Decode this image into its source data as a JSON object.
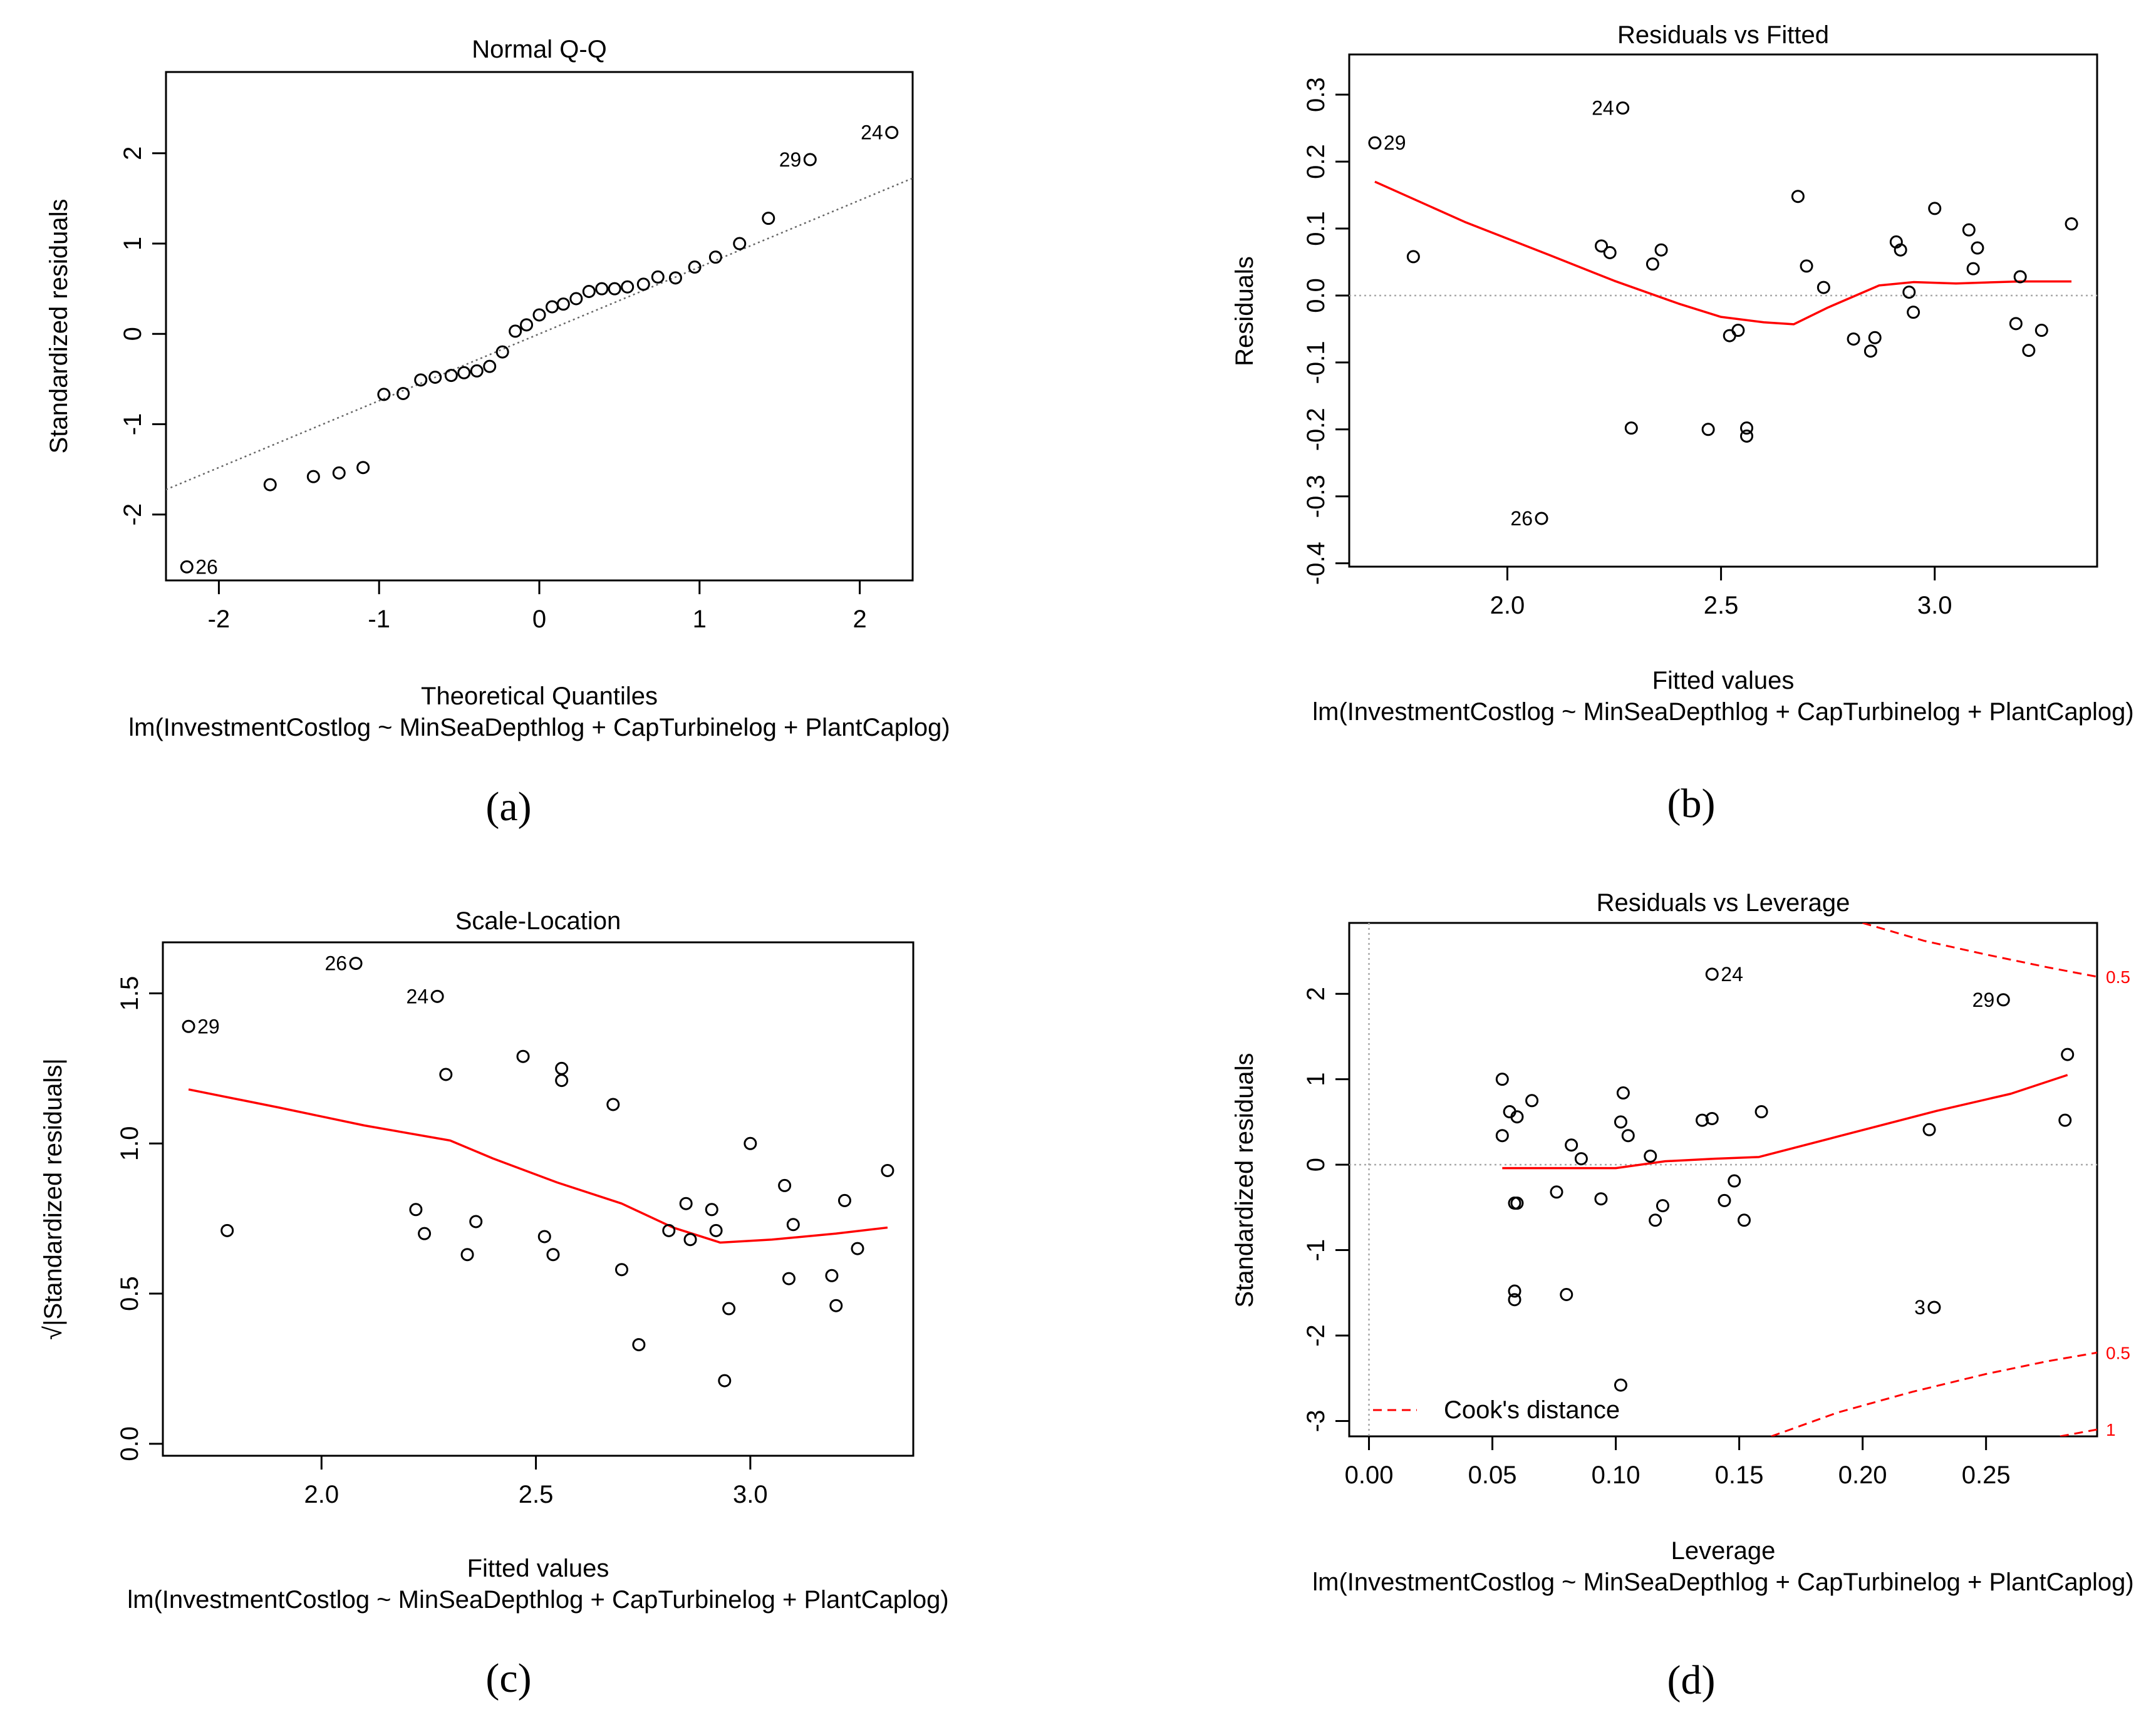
{
  "model_formula": "lm(InvestmentCostlog ~ MinSeaDepthlog + CapTurbinelog + PlantCaplog)",
  "chart_data": [
    {
      "id": "a",
      "panel_label": "(a)",
      "type": "scatter",
      "title": "Normal Q-Q",
      "xlabel": "Theoretical Quantiles",
      "ylabel": "Standardized residuals",
      "subtitle": "lm(InvestmentCostlog ~ MinSeaDepthlog + CapTurbinelog + PlantCaplog)",
      "xlim": [
        -2.33,
        2.33
      ],
      "ylim": [
        -2.73,
        2.9
      ],
      "xticks": [
        -2,
        -1,
        0,
        1,
        2
      ],
      "yticks": [
        -2,
        -1,
        0,
        1,
        2
      ],
      "xtick_labels": [
        "-2",
        "-1",
        "0",
        "1",
        "2"
      ],
      "ytick_labels": [
        "-2",
        "-1",
        "0",
        "1",
        "2"
      ],
      "points": [
        [
          -2.2,
          -2.58
        ],
        [
          -1.68,
          -1.67
        ],
        [
          -1.41,
          -1.58
        ],
        [
          -1.25,
          -1.54
        ],
        [
          -1.1,
          -1.48
        ],
        [
          -0.97,
          -0.67
        ],
        [
          -0.85,
          -0.66
        ],
        [
          -0.74,
          -0.51
        ],
        [
          -0.65,
          -0.48
        ],
        [
          -0.55,
          -0.46
        ],
        [
          -0.47,
          -0.43
        ],
        [
          -0.39,
          -0.41
        ],
        [
          -0.31,
          -0.36
        ],
        [
          -0.23,
          -0.2
        ],
        [
          -0.15,
          0.03
        ],
        [
          -0.08,
          0.1
        ],
        [
          0.0,
          0.21
        ],
        [
          0.08,
          0.3
        ],
        [
          0.15,
          0.33
        ],
        [
          0.23,
          0.39
        ],
        [
          0.31,
          0.47
        ],
        [
          0.39,
          0.5
        ],
        [
          0.47,
          0.5
        ],
        [
          0.55,
          0.52
        ],
        [
          0.65,
          0.55
        ],
        [
          0.74,
          0.63
        ],
        [
          0.85,
          0.62
        ],
        [
          0.97,
          0.74
        ],
        [
          1.1,
          0.85
        ],
        [
          1.25,
          1.0
        ],
        [
          1.43,
          1.28
        ],
        [
          1.69,
          1.93
        ],
        [
          2.2,
          2.23
        ]
      ],
      "ref_line": {
        "intercept": 0.0,
        "slope": 0.74,
        "style": "dotted"
      },
      "annotations": [
        {
          "label": "26",
          "x": -2.2,
          "y": -2.58,
          "side": "right"
        },
        {
          "label": "29",
          "x": 1.69,
          "y": 1.93,
          "side": "left"
        },
        {
          "label": "24",
          "x": 2.2,
          "y": 2.23,
          "side": "left"
        }
      ]
    },
    {
      "id": "b",
      "panel_label": "(b)",
      "type": "scatter",
      "title": "Residuals vs Fitted",
      "xlabel": "Fitted values",
      "ylabel": "Residuals",
      "subtitle": "lm(InvestmentCostlog ~ MinSeaDepthlog + CapTurbinelog + PlantCaplog)",
      "xlim": [
        1.63,
        3.38
      ],
      "ylim": [
        -0.405,
        0.36
      ],
      "xticks": [
        2.0,
        2.5,
        3.0
      ],
      "yticks": [
        -0.4,
        -0.3,
        -0.2,
        -0.1,
        0.0,
        0.1,
        0.2,
        0.3
      ],
      "xtick_labels": [
        "2.0",
        "2.5",
        "3.0"
      ],
      "ytick_labels": [
        "-0.4",
        "-0.3",
        "-0.2",
        "-0.1",
        "0.0",
        "0.1",
        "0.2",
        "0.3"
      ],
      "points": [
        [
          1.69,
          0.228
        ],
        [
          1.78,
          0.058
        ],
        [
          2.08,
          -0.333
        ],
        [
          2.22,
          0.074
        ],
        [
          2.24,
          0.064
        ],
        [
          2.27,
          0.28
        ],
        [
          2.29,
          -0.198
        ],
        [
          2.34,
          0.047
        ],
        [
          2.36,
          0.068
        ],
        [
          2.47,
          -0.2
        ],
        [
          2.52,
          -0.06
        ],
        [
          2.54,
          -0.052
        ],
        [
          2.56,
          -0.198
        ],
        [
          2.56,
          -0.21
        ],
        [
          2.68,
          0.148
        ],
        [
          2.7,
          0.044
        ],
        [
          2.74,
          0.012
        ],
        [
          2.81,
          -0.065
        ],
        [
          2.85,
          -0.083
        ],
        [
          2.86,
          -0.063
        ],
        [
          2.91,
          0.08
        ],
        [
          2.92,
          0.068
        ],
        [
          2.94,
          0.005
        ],
        [
          2.95,
          -0.025
        ],
        [
          3.0,
          0.13
        ],
        [
          3.08,
          0.098
        ],
        [
          3.09,
          0.04
        ],
        [
          3.1,
          0.071
        ],
        [
          3.19,
          -0.042
        ],
        [
          3.2,
          0.028
        ],
        [
          3.22,
          -0.082
        ],
        [
          3.25,
          -0.052
        ],
        [
          3.32,
          0.107
        ]
      ],
      "smooth": [
        [
          1.69,
          0.17
        ],
        [
          1.9,
          0.11
        ],
        [
          2.1,
          0.06
        ],
        [
          2.25,
          0.022
        ],
        [
          2.4,
          -0.012
        ],
        [
          2.5,
          -0.032
        ],
        [
          2.6,
          -0.04
        ],
        [
          2.67,
          -0.043
        ],
        [
          2.75,
          -0.018
        ],
        [
          2.87,
          0.015
        ],
        [
          2.95,
          0.02
        ],
        [
          3.05,
          0.018
        ],
        [
          3.2,
          0.021
        ],
        [
          3.32,
          0.021
        ]
      ],
      "ref_line_y": 0,
      "annotations": [
        {
          "label": "29",
          "x": 1.69,
          "y": 0.228,
          "side": "right"
        },
        {
          "label": "24",
          "x": 2.27,
          "y": 0.28,
          "side": "left"
        },
        {
          "label": "26",
          "x": 2.08,
          "y": -0.333,
          "side": "left"
        }
      ]
    },
    {
      "id": "c",
      "panel_label": "(c)",
      "type": "scatter",
      "title": "Scale-Location",
      "xlabel": "Fitted values",
      "ylabel": "√|Standardized residuals|",
      "subtitle": "lm(InvestmentCostlog ~ MinSeaDepthlog + CapTurbinelog + PlantCaplog)",
      "xlim": [
        1.63,
        3.38
      ],
      "ylim": [
        -0.04,
        1.67
      ],
      "xticks": [
        2.0,
        2.5,
        3.0
      ],
      "yticks": [
        0.0,
        0.5,
        1.0,
        1.5
      ],
      "xtick_labels": [
        "2.0",
        "2.5",
        "3.0"
      ],
      "ytick_labels": [
        "0.0",
        "0.5",
        "1.0",
        "1.5"
      ],
      "points": [
        [
          1.69,
          1.39
        ],
        [
          1.78,
          0.71
        ],
        [
          2.08,
          1.6
        ],
        [
          2.22,
          0.78
        ],
        [
          2.24,
          0.7
        ],
        [
          2.27,
          1.49
        ],
        [
          2.29,
          1.23
        ],
        [
          2.34,
          0.63
        ],
        [
          2.36,
          0.74
        ],
        [
          2.47,
          1.29
        ],
        [
          2.52,
          0.69
        ],
        [
          2.54,
          0.63
        ],
        [
          2.56,
          1.25
        ],
        [
          2.56,
          1.21
        ],
        [
          2.68,
          1.13
        ],
        [
          2.7,
          0.58
        ],
        [
          2.74,
          0.33
        ],
        [
          2.81,
          0.71
        ],
        [
          2.85,
          0.8
        ],
        [
          2.86,
          0.68
        ],
        [
          2.91,
          0.78
        ],
        [
          2.92,
          0.71
        ],
        [
          2.94,
          0.21
        ],
        [
          2.95,
          0.45
        ],
        [
          3.0,
          1.0
        ],
        [
          3.08,
          0.86
        ],
        [
          3.09,
          0.55
        ],
        [
          3.1,
          0.73
        ],
        [
          3.19,
          0.56
        ],
        [
          3.2,
          0.46
        ],
        [
          3.22,
          0.81
        ],
        [
          3.25,
          0.65
        ],
        [
          3.32,
          0.91
        ]
      ],
      "smooth": [
        [
          1.69,
          1.18
        ],
        [
          1.9,
          1.12
        ],
        [
          2.1,
          1.06
        ],
        [
          2.3,
          1.01
        ],
        [
          2.4,
          0.95
        ],
        [
          2.55,
          0.87
        ],
        [
          2.7,
          0.8
        ],
        [
          2.82,
          0.72
        ],
        [
          2.93,
          0.67
        ],
        [
          3.05,
          0.68
        ],
        [
          3.2,
          0.7
        ],
        [
          3.32,
          0.72
        ]
      ],
      "annotations": [
        {
          "label": "29",
          "x": 1.69,
          "y": 1.39,
          "side": "right"
        },
        {
          "label": "26",
          "x": 2.08,
          "y": 1.6,
          "side": "left"
        },
        {
          "label": "24",
          "x": 2.27,
          "y": 1.49,
          "side": "left"
        }
      ]
    },
    {
      "id": "d",
      "panel_label": "(d)",
      "type": "scatter",
      "title": "Residuals vs Leverage",
      "xlabel": "Leverage",
      "ylabel": "Standardized residuals",
      "subtitle": "lm(InvestmentCostlog ~ MinSeaDepthlog + CapTurbinelog + PlantCaplog)",
      "xlim": [
        -0.008,
        0.295
      ],
      "ylim": [
        -3.18,
        2.83
      ],
      "xticks": [
        0.0,
        0.05,
        0.1,
        0.15,
        0.2,
        0.25
      ],
      "yticks": [
        -3,
        -2,
        -1,
        0,
        1,
        2
      ],
      "xtick_labels": [
        "0.00",
        "0.05",
        "0.10",
        "0.15",
        "0.20",
        "0.25"
      ],
      "ytick_labels": [
        "-3",
        "-2",
        "-1",
        "0",
        "1",
        "2"
      ],
      "points": [
        [
          0.054,
          1.0
        ],
        [
          0.054,
          0.34
        ],
        [
          0.057,
          0.62
        ],
        [
          0.06,
          0.56
        ],
        [
          0.059,
          -0.45
        ],
        [
          0.06,
          -0.45
        ],
        [
          0.059,
          -1.48
        ],
        [
          0.059,
          -1.58
        ],
        [
          0.066,
          0.75
        ],
        [
          0.076,
          -0.32
        ],
        [
          0.08,
          -1.52
        ],
        [
          0.082,
          0.23
        ],
        [
          0.086,
          0.07
        ],
        [
          0.094,
          -0.4
        ],
        [
          0.102,
          0.5
        ],
        [
          0.103,
          0.84
        ],
        [
          0.105,
          0.34
        ],
        [
          0.102,
          -2.58
        ],
        [
          0.114,
          0.1
        ],
        [
          0.116,
          -0.65
        ],
        [
          0.119,
          -0.48
        ],
        [
          0.135,
          0.52
        ],
        [
          0.139,
          0.54
        ],
        [
          0.139,
          2.23
        ],
        [
          0.144,
          -0.42
        ],
        [
          0.148,
          -0.19
        ],
        [
          0.152,
          -0.65
        ],
        [
          0.159,
          0.62
        ],
        [
          0.227,
          0.41
        ],
        [
          0.229,
          -1.67
        ],
        [
          0.257,
          1.93
        ],
        [
          0.282,
          0.52
        ],
        [
          0.283,
          1.29
        ]
      ],
      "smooth": [
        [
          0.054,
          -0.04
        ],
        [
          0.08,
          -0.04
        ],
        [
          0.1,
          -0.04
        ],
        [
          0.12,
          0.04
        ],
        [
          0.14,
          0.07
        ],
        [
          0.158,
          0.09
        ],
        [
          0.19,
          0.33
        ],
        [
          0.23,
          0.63
        ],
        [
          0.26,
          0.83
        ],
        [
          0.283,
          1.05
        ]
      ],
      "cooks_upper_05": [
        [
          0.2,
          2.83
        ],
        [
          0.225,
          2.62
        ],
        [
          0.25,
          2.46
        ],
        [
          0.275,
          2.31
        ],
        [
          0.295,
          2.2
        ]
      ],
      "cooks_lower_05": [
        [
          0.163,
          -3.18
        ],
        [
          0.19,
          -2.9
        ],
        [
          0.22,
          -2.66
        ],
        [
          0.25,
          -2.45
        ],
        [
          0.275,
          -2.3
        ],
        [
          0.295,
          -2.2
        ]
      ],
      "cooks_lower_1": [
        [
          0.28,
          -3.18
        ],
        [
          0.295,
          -3.1
        ]
      ],
      "ref_line_y": 0,
      "ref_line_x": 0,
      "contour_labels": [
        {
          "label": "0.5",
          "y": 2.2
        },
        {
          "label": "0.5",
          "y": -2.2
        },
        {
          "label": "1",
          "y": -3.1
        }
      ],
      "legend": {
        "label": "Cook's distance",
        "position": "bottom-left"
      },
      "annotations": [
        {
          "label": "24",
          "x": 0.139,
          "y": 2.23,
          "side": "right"
        },
        {
          "label": "29",
          "x": 0.257,
          "y": 1.93,
          "side": "left"
        },
        {
          "label": "3",
          "x": 0.229,
          "y": -1.67,
          "side": "left"
        }
      ]
    }
  ]
}
